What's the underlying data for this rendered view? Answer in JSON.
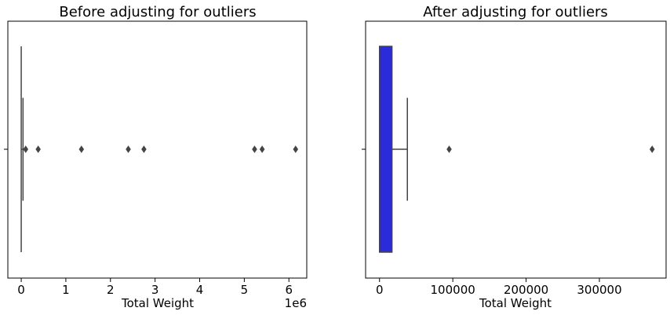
{
  "chart_data": [
    {
      "type": "box",
      "title": "Before adjusting for outliers",
      "xlabel": "Total Weight",
      "ylabel": "",
      "x_scale_label": "1e6",
      "xlim": [
        -0.3,
        6.4
      ],
      "xticks": [
        0,
        1,
        2,
        3,
        4,
        5,
        6
      ],
      "xtick_labels": [
        "0",
        "1",
        "2",
        "3",
        "4",
        "5",
        "6"
      ],
      "box": {
        "min": 0.0,
        "q1": 0.0,
        "median": 0.0,
        "q3": 0.0,
        "max": 0.04
      },
      "outliers": [
        0.1,
        0.38,
        1.35,
        2.4,
        2.75,
        5.23,
        5.4,
        6.15
      ],
      "box_color": "#3b3bdc",
      "line_color": "#444444"
    },
    {
      "type": "box",
      "title": "After adjusting for outliers",
      "xlabel": "Total Weight",
      "ylabel": "",
      "x_scale_label": "",
      "xlim": [
        -19000,
        391000
      ],
      "xticks": [
        0,
        100000,
        200000,
        300000
      ],
      "xtick_labels": [
        "0",
        "100000",
        "200000",
        "300000"
      ],
      "box": {
        "min": 0,
        "q1": 0,
        "median": 0,
        "q3": 17000,
        "max": 38000
      },
      "outliers": [
        95000,
        372000
      ],
      "box_color": "#2b2bd9",
      "line_color": "#444444"
    }
  ]
}
